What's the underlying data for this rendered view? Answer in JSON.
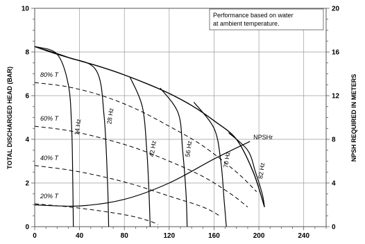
{
  "chart_data": {
    "type": "line",
    "title": "",
    "annotation": [
      "Performance based on water",
      "at ambient temperature."
    ],
    "xlabel": "",
    "ylabel_left": "TOTAL DISCHARGED HEAD (BAR)",
    "ylabel_right": "NPSH REQUIRED IN METERS",
    "xlim": [
      0,
      260
    ],
    "ylim_left": [
      0,
      10
    ],
    "ylim_right": [
      0,
      20
    ],
    "grid": true,
    "x_ticks": [
      0,
      40,
      80,
      120,
      160,
      200,
      240
    ],
    "y_ticks_left": [
      0,
      2,
      4,
      6,
      8,
      10
    ],
    "y_ticks_right": [
      0,
      4,
      8,
      12,
      16,
      20
    ],
    "max_head_envelope": {
      "x": [
        0,
        20,
        40,
        60,
        80,
        100,
        120,
        140,
        160,
        180,
        195,
        205
      ],
      "y": [
        8.25,
        7.9,
        7.6,
        7.3,
        6.95,
        6.55,
        6.1,
        5.55,
        4.85,
        4.0,
        2.5,
        0.9
      ]
    },
    "speed_curves": [
      {
        "name": "14 Hz",
        "x": [
          0,
          20,
          30,
          33,
          34,
          34.5
        ],
        "y": [
          8.25,
          7.9,
          6.5,
          4.5,
          2.0,
          0
        ]
      },
      {
        "name": "28 Hz",
        "x": [
          0,
          30,
          55,
          62,
          65,
          66
        ],
        "y": [
          8.25,
          7.75,
          7.15,
          5.0,
          2.0,
          0
        ]
      },
      {
        "name": "42 Hz",
        "x": [
          85,
          96,
          100,
          102,
          103
        ],
        "y": [
          6.85,
          5.5,
          3.5,
          1.5,
          0
        ]
      },
      {
        "name": "56 Hz",
        "x": [
          112,
          128,
          132,
          135,
          136
        ],
        "y": [
          6.35,
          5.2,
          3.5,
          1.5,
          0
        ]
      },
      {
        "name": "70 Hz",
        "x": [
          142,
          160,
          166,
          169,
          171
        ],
        "y": [
          5.7,
          4.5,
          3.0,
          1.2,
          0
        ]
      },
      {
        "name": "82 Hz",
        "x": [
          173,
          190,
          197,
          203,
          205
        ],
        "y": [
          4.3,
          3.5,
          2.5,
          1.5,
          0.9
        ]
      }
    ],
    "efficiency_curves": [
      {
        "name": "80% T",
        "x": [
          0,
          30,
          60,
          90,
          120,
          150,
          180,
          198
        ],
        "y": [
          6.6,
          6.4,
          6.0,
          5.4,
          4.6,
          3.7,
          2.5,
          1.6
        ]
      },
      {
        "name": "60% T",
        "x": [
          0,
          30,
          60,
          90,
          120,
          150,
          175,
          190
        ],
        "y": [
          4.6,
          4.4,
          4.05,
          3.6,
          3.0,
          2.3,
          1.5,
          0.9
        ]
      },
      {
        "name": "40% T",
        "x": [
          0,
          30,
          60,
          90,
          120,
          150,
          165
        ],
        "y": [
          2.8,
          2.6,
          2.3,
          1.9,
          1.4,
          0.9,
          0.5
        ]
      },
      {
        "name": "20% T",
        "x": [
          0,
          40,
          80,
          100,
          110
        ],
        "y": [
          1.05,
          0.85,
          0.55,
          0.3,
          0.1
        ]
      }
    ],
    "npsh_curve": {
      "name": "NPSHr",
      "x": [
        0,
        40,
        80,
        120,
        160,
        192
      ],
      "y_meters": [
        2.0,
        1.9,
        2.5,
        4.0,
        6.2,
        7.8
      ]
    },
    "colors": {
      "curve": "#000000",
      "grid": "#9a9a9a",
      "axis": "#555555"
    }
  }
}
